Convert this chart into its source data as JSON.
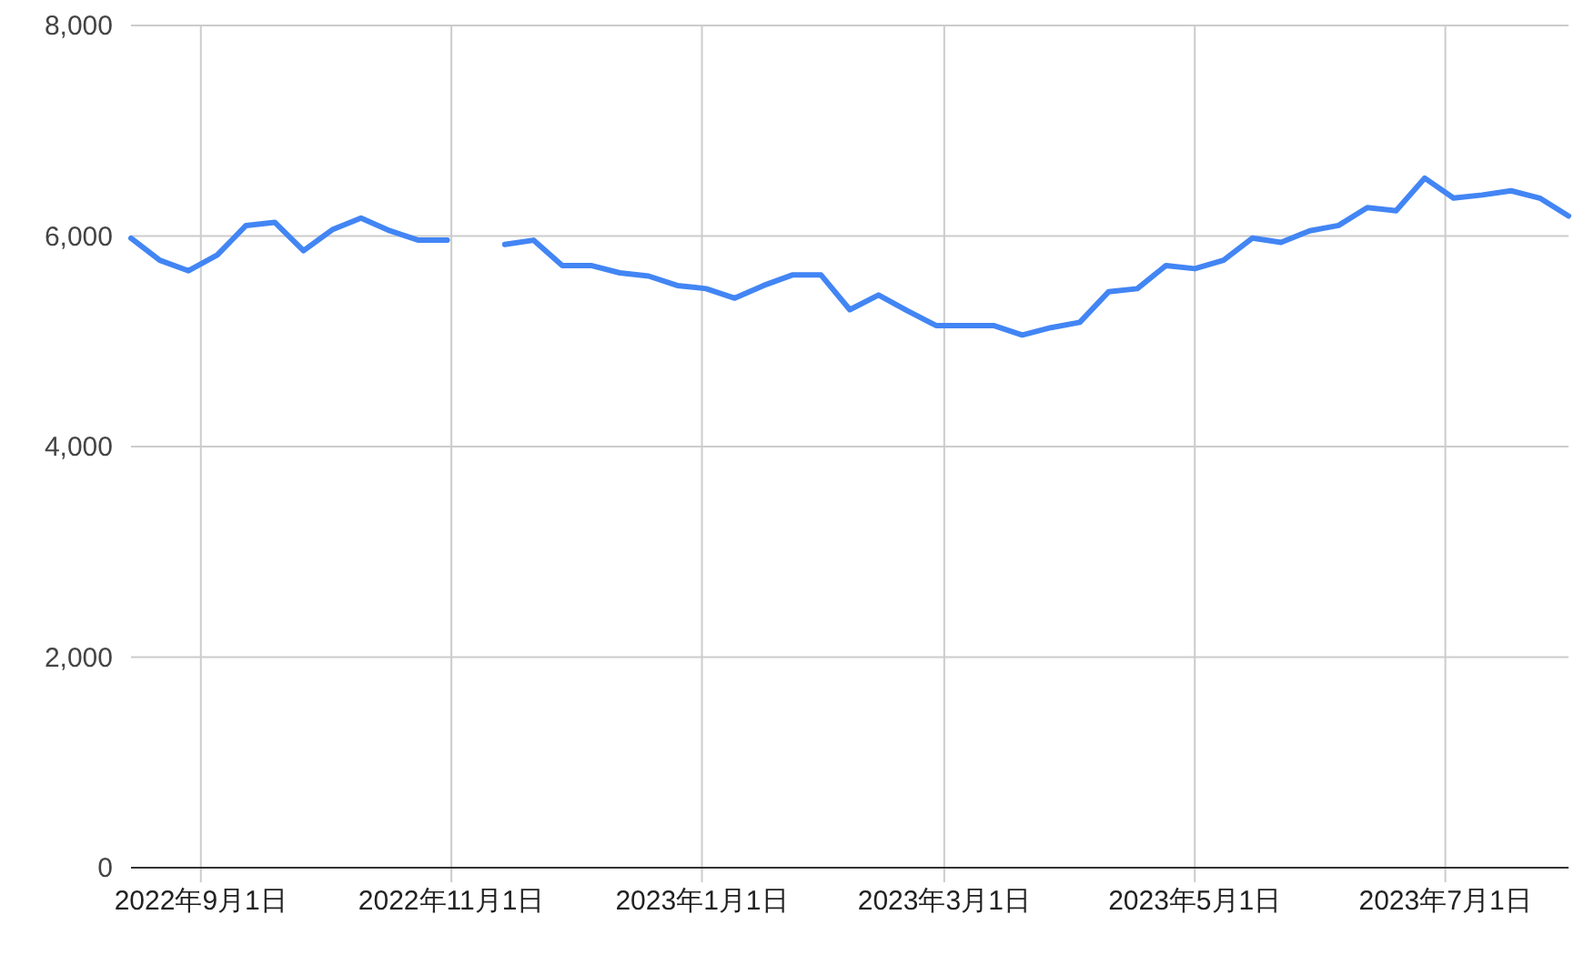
{
  "chart_data": {
    "type": "line",
    "x": [
      "2022-08-15",
      "2022-08-22",
      "2022-08-29",
      "2022-09-05",
      "2022-09-12",
      "2022-09-19",
      "2022-09-26",
      "2022-10-03",
      "2022-10-10",
      "2022-10-17",
      "2022-10-24",
      "2022-10-31",
      "2022-11-07",
      "2022-11-14",
      "2022-11-21",
      "2022-11-28",
      "2022-12-05",
      "2022-12-12",
      "2022-12-19",
      "2022-12-26",
      "2023-01-02",
      "2023-01-09",
      "2023-01-16",
      "2023-01-23",
      "2023-01-30",
      "2023-02-06",
      "2023-02-13",
      "2023-02-20",
      "2023-02-27",
      "2023-03-06",
      "2023-03-13",
      "2023-03-20",
      "2023-03-27",
      "2023-04-03",
      "2023-04-10",
      "2023-04-17",
      "2023-04-24",
      "2023-05-01",
      "2023-05-08",
      "2023-05-15",
      "2023-05-22",
      "2023-05-29",
      "2023-06-05",
      "2023-06-12",
      "2023-06-19",
      "2023-06-26",
      "2023-07-03",
      "2023-07-10",
      "2023-07-17",
      "2023-07-24",
      "2023-07-31"
    ],
    "series": [
      {
        "color": "#4285f4",
        "values": [
          5980,
          5770,
          5670,
          5820,
          6100,
          6130,
          5860,
          6060,
          6170,
          6050,
          5960,
          5960,
          null,
          5920,
          5960,
          5720,
          5720,
          5650,
          5620,
          5530,
          5500,
          5410,
          5530,
          5630,
          5630,
          5300,
          5440,
          5290,
          5150,
          5150,
          5150,
          5060,
          5130,
          5180,
          5470,
          5500,
          5720,
          5690,
          5770,
          5980,
          5940,
          6050,
          6100,
          6270,
          6240,
          6550,
          6360,
          6390,
          6430,
          6360,
          6190
        ]
      }
    ],
    "xlim": [
      "2022-08-15",
      "2023-07-31"
    ],
    "xticks": [
      {
        "value": "2022-09-01",
        "label": "2022年9月1日"
      },
      {
        "value": "2022-11-01",
        "label": "2022年11月1日"
      },
      {
        "value": "2023-01-01",
        "label": "2023年1月1日"
      },
      {
        "value": "2023-03-01",
        "label": "2023年3月1日"
      },
      {
        "value": "2023-05-01",
        "label": "2023年5月1日"
      },
      {
        "value": "2023-07-01",
        "label": "2023年7月1日"
      }
    ],
    "ylim": [
      0,
      8000
    ],
    "yticks": [
      0,
      {
        "value": 2000,
        "label": "2,000"
      },
      {
        "value": 4000,
        "label": "4,000"
      },
      {
        "value": 6000,
        "label": "6,000"
      },
      {
        "value": 8000,
        "label": "8,000"
      }
    ],
    "grid": true
  }
}
